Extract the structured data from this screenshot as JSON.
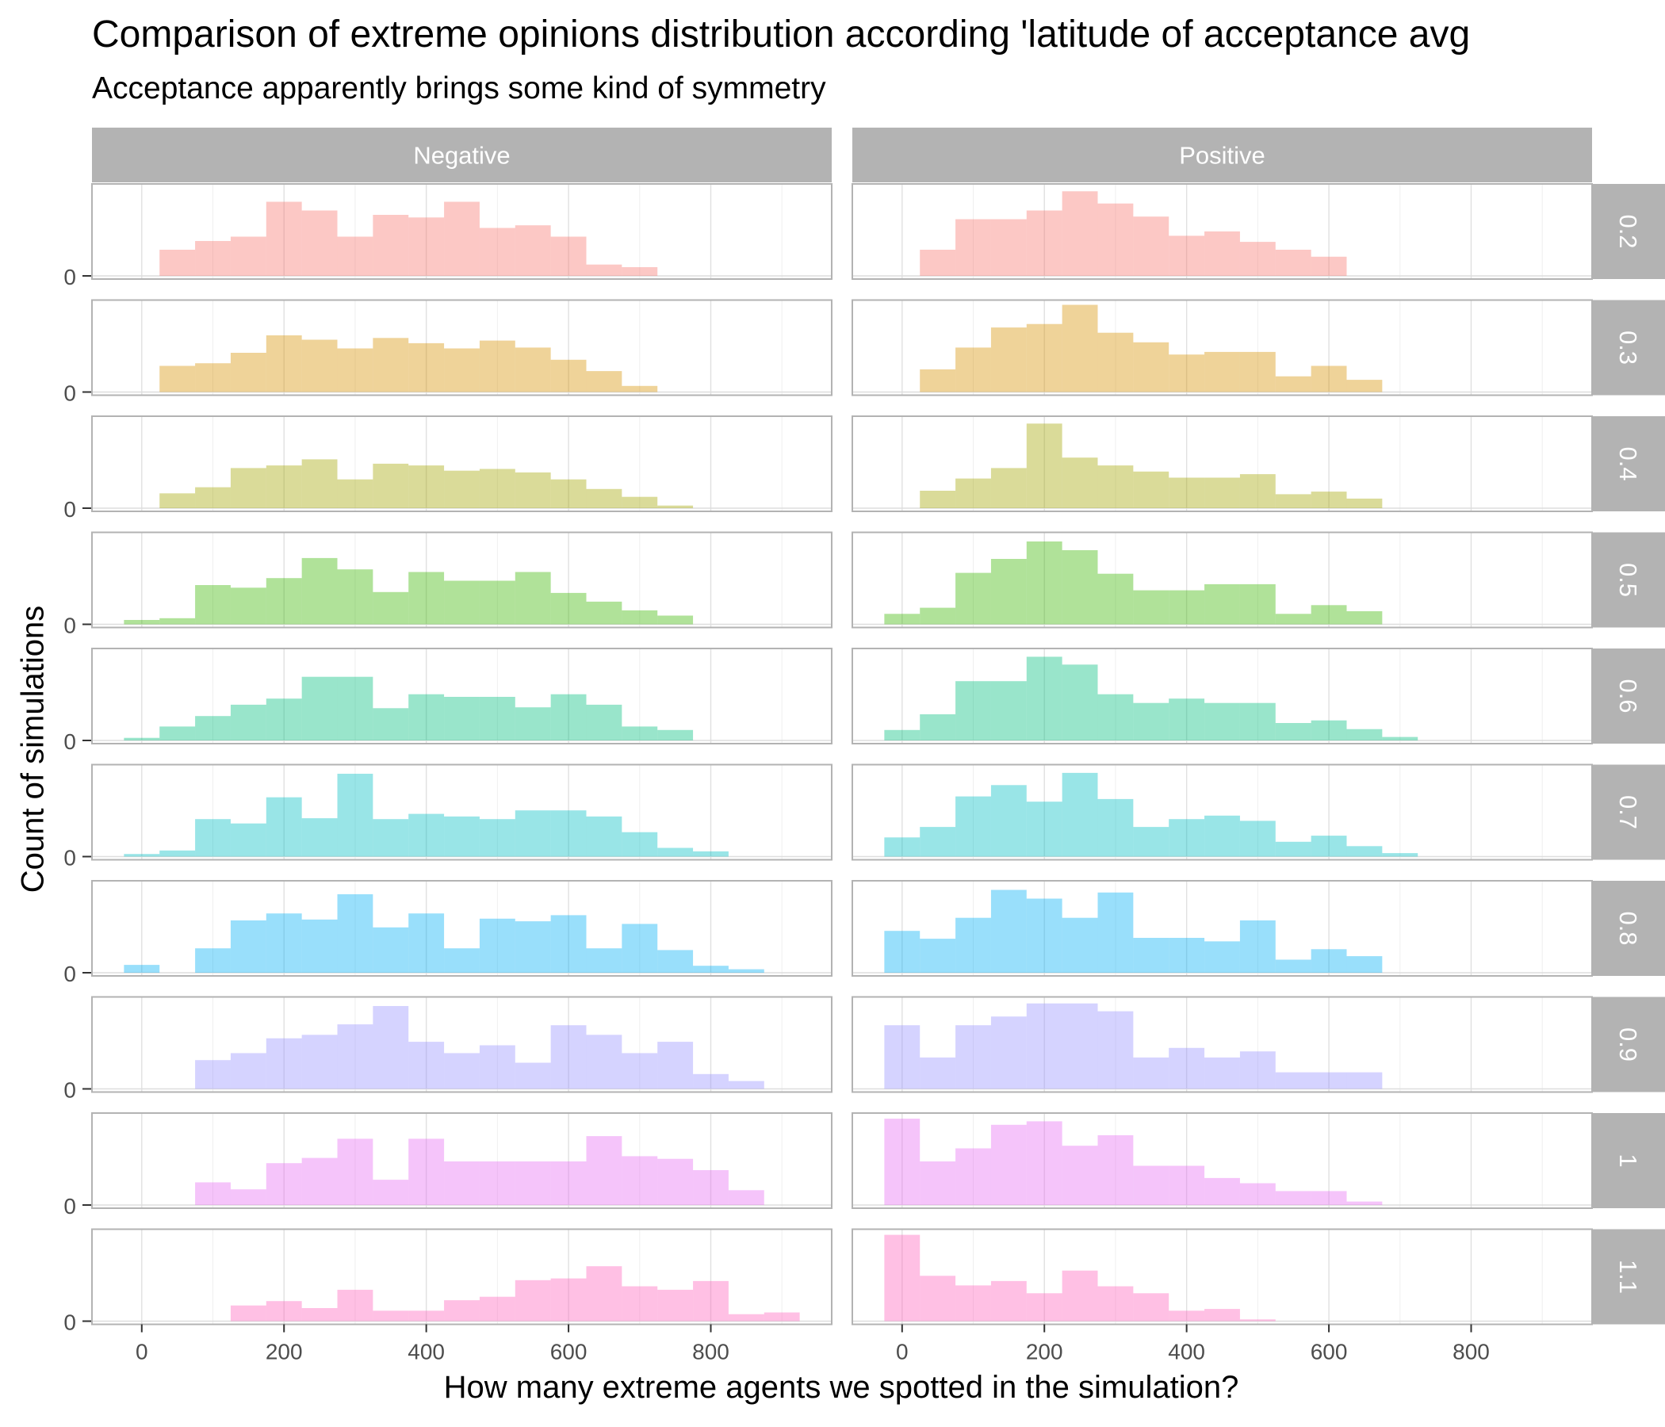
{
  "title": "Comparison of extreme opinions distribution according 'latitude of acceptance avg",
  "subtitle": "Acceptance apparently brings some kind of symmetry",
  "chart_data": {
    "type": "histogram",
    "xlabel": "How many extreme agents we spotted in the simulation?",
    "ylabel": "Count of simulations",
    "xlim": [
      -70,
      970
    ],
    "x_ticks": [
      0,
      200,
      400,
      600,
      800
    ],
    "y_tick_label": "0",
    "bin_width": 50,
    "grid": true,
    "columns": [
      "Negative",
      "Positive"
    ],
    "rows": [
      "0.2",
      "0.3",
      "0.4",
      "0.5",
      "0.6",
      "0.7",
      "0.8",
      "0.9",
      "1",
      "1.1"
    ],
    "colors": [
      "#F8766D",
      "#D89000",
      "#A3A500",
      "#39B600",
      "#00BF7D",
      "#00BFC4",
      "#00B0F6",
      "#9590FF",
      "#E76BF3",
      "#FF62BC"
    ],
    "y_max": 10,
    "panels": {
      "Negative": [
        {
          "row": "0.2",
          "first_bin_start": 25,
          "counts": [
            3,
            4,
            4.5,
            8.5,
            7.5,
            4.5,
            7,
            6.7,
            8.5,
            5.5,
            5.8,
            4.5,
            1.3,
            1
          ]
        },
        {
          "row": "0.3",
          "first_bin_start": 25,
          "counts": [
            3,
            3.3,
            4.5,
            6.5,
            6,
            5,
            6.2,
            5.6,
            5,
            5.9,
            5.1,
            3.7,
            2.4,
            0.7
          ]
        },
        {
          "row": "0.4",
          "first_bin_start": 25,
          "counts": [
            1.7,
            2.4,
            4.6,
            4.9,
            5.6,
            3.3,
            5.1,
            4.9,
            4.3,
            4.5,
            4.1,
            3.3,
            2.2,
            1.3,
            0.3
          ]
        },
        {
          "row": "0.5",
          "first_bin_start": -25,
          "counts": [
            0.5,
            0.7,
            4.5,
            4.2,
            5.3,
            7.6,
            6.3,
            3.7,
            6,
            5,
            5,
            6,
            3.6,
            2.6,
            1.6,
            1
          ]
        },
        {
          "row": "0.6",
          "first_bin_start": -25,
          "counts": [
            0.3,
            1.6,
            2.8,
            4.1,
            4.8,
            7.3,
            7.3,
            3.7,
            5.3,
            5,
            5,
            3.8,
            5.3,
            4.1,
            1.6,
            1.2
          ]
        },
        {
          "row": "0.7",
          "first_bin_start": -25,
          "counts": [
            0.3,
            0.7,
            4.3,
            3.8,
            6.8,
            4.4,
            9.5,
            4.3,
            4.9,
            4.6,
            4.3,
            5.3,
            5.3,
            4.6,
            2.8,
            1,
            0.6
          ]
        },
        {
          "row": "0.8",
          "first_bin_start": -25,
          "counts": [
            0.9,
            0,
            2.8,
            6,
            6.8,
            6.1,
            9,
            5.2,
            6.8,
            2.8,
            6.2,
            5.9,
            6.6,
            2.8,
            5.6,
            2.6,
            0.8,
            0.4
          ]
        },
        {
          "row": "0.9",
          "first_bin_start": 75,
          "counts": [
            3.3,
            4.1,
            5.8,
            6.2,
            7.4,
            9.5,
            5.4,
            4.1,
            5,
            3,
            7.3,
            6.2,
            4.1,
            5.4,
            1.7,
            0.9
          ]
        },
        {
          "row": "1",
          "first_bin_start": 75,
          "counts": [
            2.6,
            1.8,
            4.8,
            5.4,
            7.6,
            2.9,
            7.6,
            5,
            5,
            5,
            5,
            7.9,
            5.6,
            5.3,
            4,
            1.7
          ]
        },
        {
          "row": "1.1",
          "first_bin_start": 125,
          "counts": [
            1.8,
            2.3,
            1.5,
            3.6,
            1.2,
            1.2,
            2.4,
            2.8,
            4.7,
            4.9,
            6.3,
            4,
            3.6,
            4.6,
            0.8,
            1
          ]
        }
      ],
      "Positive": [
        {
          "row": "0.2",
          "first_bin_start": 25,
          "counts": [
            3,
            6.5,
            6.5,
            7.5,
            9.7,
            8.3,
            6.8,
            4.6,
            5.1,
            3.9,
            3,
            2.2
          ]
        },
        {
          "row": "0.3",
          "first_bin_start": 25,
          "counts": [
            2.6,
            5.1,
            7.4,
            7.8,
            10,
            6.8,
            5.7,
            4.3,
            4.6,
            4.6,
            1.8,
            3,
            1.4
          ]
        },
        {
          "row": "0.4",
          "first_bin_start": 25,
          "counts": [
            2,
            3.4,
            4.6,
            9.7,
            5.8,
            4.9,
            4.2,
            3.5,
            3.5,
            3.9,
            1.6,
            1.9,
            1.1
          ]
        },
        {
          "row": "0.5",
          "first_bin_start": -25,
          "counts": [
            1.2,
            1.9,
            5.9,
            7.5,
            9.5,
            8.5,
            5.8,
            3.9,
            3.9,
            4.6,
            4.6,
            1.2,
            2.2,
            1.5
          ]
        },
        {
          "row": "0.6",
          "first_bin_start": -25,
          "counts": [
            1.2,
            3,
            6.8,
            6.8,
            9.6,
            8.7,
            5.3,
            4.3,
            4.8,
            4.3,
            4.3,
            2,
            2.3,
            1.3,
            0.4
          ]
        },
        {
          "row": "0.7",
          "first_bin_start": -25,
          "counts": [
            2.2,
            3.4,
            6.9,
            8.2,
            6.3,
            9.6,
            6.6,
            3.4,
            4.3,
            4.7,
            4.1,
            1.7,
            2.4,
            1.2,
            0.4
          ]
        },
        {
          "row": "0.8",
          "first_bin_start": -25,
          "counts": [
            4.8,
            3.9,
            6.3,
            9.5,
            8.5,
            6.3,
            9.2,
            4,
            4,
            3.6,
            6,
            1.5,
            2.7,
            1.9
          ]
        },
        {
          "row": "0.9",
          "first_bin_start": -25,
          "counts": [
            7.3,
            3.6,
            7.3,
            8.3,
            9.8,
            9.8,
            8.9,
            3.6,
            4.7,
            3.6,
            4.3,
            1.9,
            1.9,
            1.9
          ]
        },
        {
          "row": "1",
          "first_bin_start": -25,
          "counts": [
            9.9,
            5,
            6.5,
            9.2,
            9.6,
            6.8,
            8,
            4.5,
            4.5,
            3.1,
            2.5,
            1.6,
            1.6,
            0.4
          ]
        },
        {
          "row": "1.1",
          "first_bin_start": -25,
          "counts": [
            9.9,
            5.2,
            4.1,
            4.6,
            3.2,
            5.8,
            4,
            3.2,
            1.2,
            1.4,
            0.2
          ]
        }
      ]
    }
  }
}
